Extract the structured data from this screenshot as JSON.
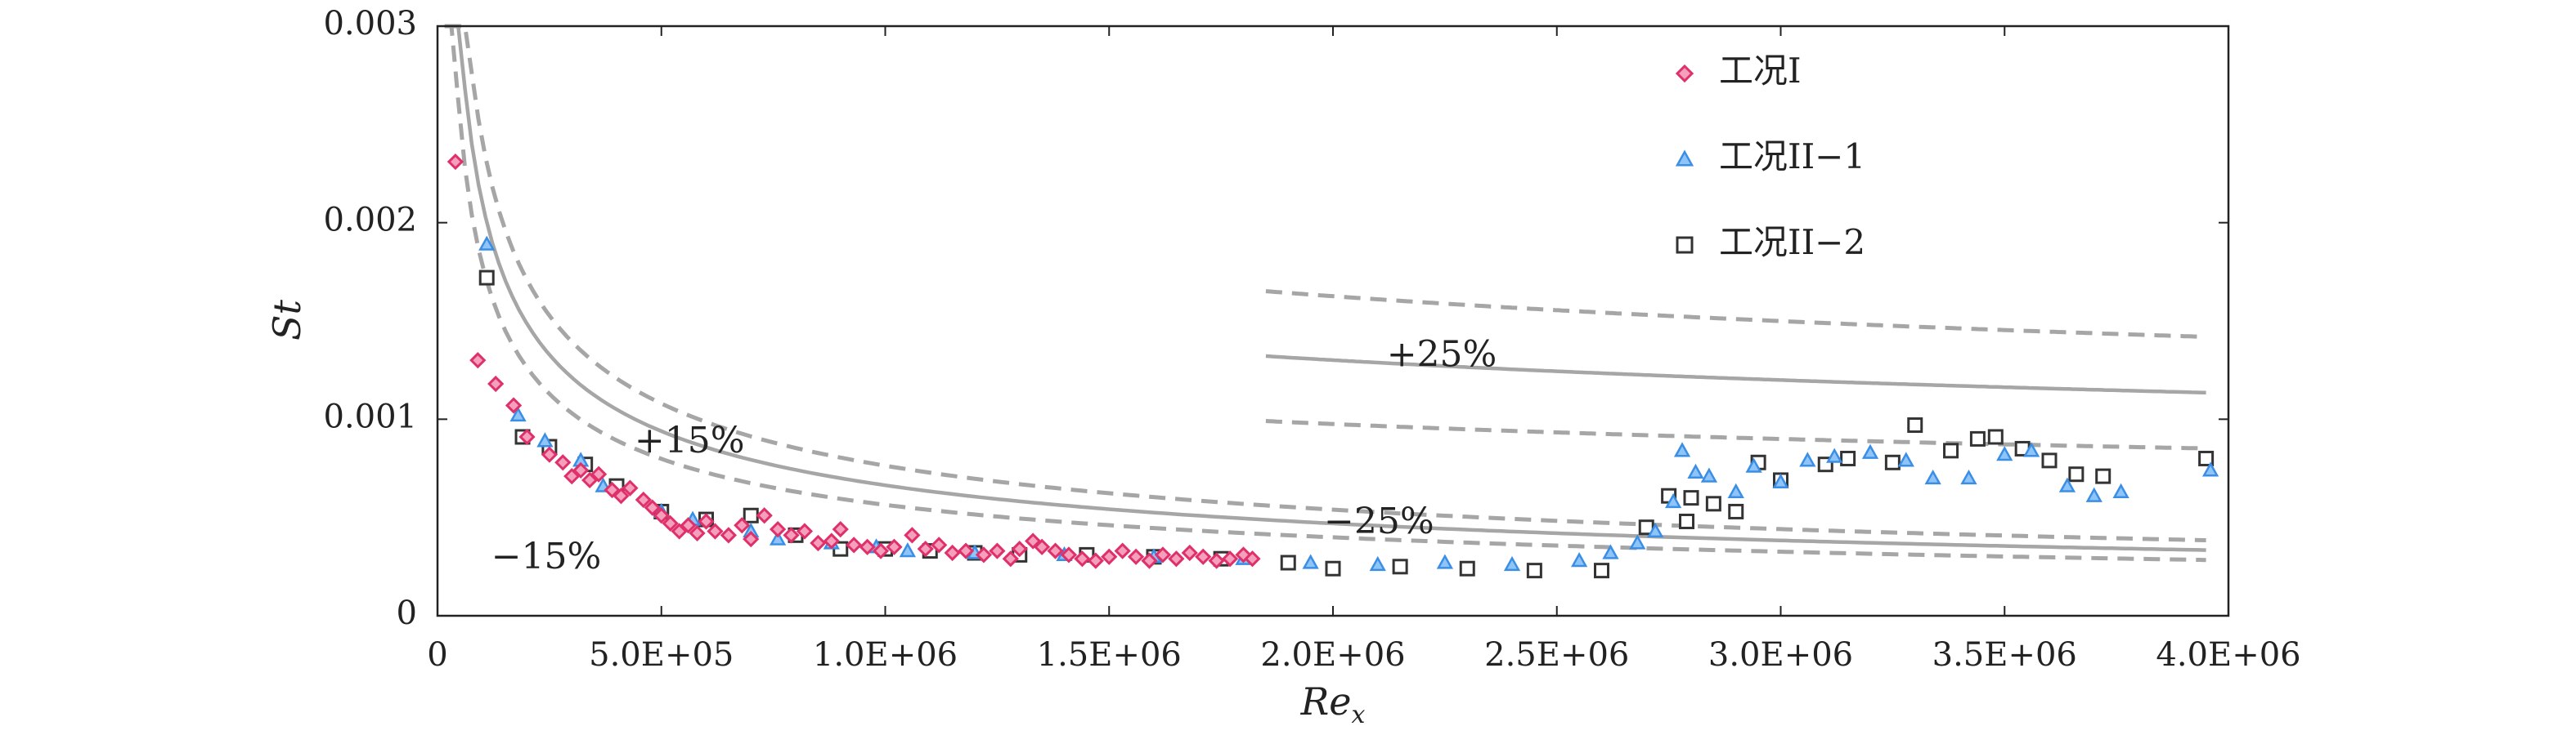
{
  "chart_data": {
    "type": "scatter",
    "xlabel": "Re",
    "xlabel_sub": "x",
    "ylabel": "St",
    "xlim": [
      0,
      4000000
    ],
    "ylim": [
      0,
      0.003
    ],
    "x_ticks": [
      {
        "value": 0,
        "label": "0"
      },
      {
        "value": 500000,
        "label": "5.0E+05"
      },
      {
        "value": 1000000,
        "label": "1.0E+06"
      },
      {
        "value": 1500000,
        "label": "1.5E+06"
      },
      {
        "value": 2000000,
        "label": "2.0E+06"
      },
      {
        "value": 2500000,
        "label": "2.5E+06"
      },
      {
        "value": 3000000,
        "label": "3.0E+06"
      },
      {
        "value": 3500000,
        "label": "3.5E+06"
      },
      {
        "value": 4000000,
        "label": "4.0E+06"
      }
    ],
    "y_ticks": [
      {
        "value": 0,
        "label": "0"
      },
      {
        "value": 0.001,
        "label": "0.001"
      },
      {
        "value": 0.002,
        "label": "0.002"
      },
      {
        "value": 0.003,
        "label": "0.003"
      }
    ],
    "grid": false,
    "legend_position": "top-right",
    "series": [
      {
        "name": "工况I",
        "marker": "diamond",
        "color": "#e0306a",
        "points": [
          [
            40000,
            0.00231
          ],
          [
            90000,
            0.0013
          ],
          [
            130000,
            0.00118
          ],
          [
            170000,
            0.00107
          ],
          [
            200000,
            0.00091
          ],
          [
            250000,
            0.00082
          ],
          [
            280000,
            0.00078
          ],
          [
            300000,
            0.00071
          ],
          [
            320000,
            0.00074
          ],
          [
            340000,
            0.00069
          ],
          [
            360000,
            0.00072
          ],
          [
            390000,
            0.00064
          ],
          [
            410000,
            0.00061
          ],
          [
            430000,
            0.00065
          ],
          [
            460000,
            0.00059
          ],
          [
            480000,
            0.00055
          ],
          [
            500000,
            0.00051
          ],
          [
            520000,
            0.00047
          ],
          [
            540000,
            0.00043
          ],
          [
            560000,
            0.00046
          ],
          [
            580000,
            0.00042
          ],
          [
            600000,
            0.00048
          ],
          [
            620000,
            0.00043
          ],
          [
            650000,
            0.00041
          ],
          [
            680000,
            0.00046
          ],
          [
            700000,
            0.00039
          ],
          [
            730000,
            0.00051
          ],
          [
            760000,
            0.00044
          ],
          [
            790000,
            0.00041
          ],
          [
            820000,
            0.00043
          ],
          [
            850000,
            0.00037
          ],
          [
            880000,
            0.00038
          ],
          [
            900000,
            0.00044
          ],
          [
            930000,
            0.00036
          ],
          [
            960000,
            0.00035
          ],
          [
            990000,
            0.00033
          ],
          [
            1020000,
            0.00035
          ],
          [
            1060000,
            0.00041
          ],
          [
            1090000,
            0.00034
          ],
          [
            1120000,
            0.00036
          ],
          [
            1150000,
            0.00032
          ],
          [
            1180000,
            0.00033
          ],
          [
            1220000,
            0.00031
          ],
          [
            1250000,
            0.00033
          ],
          [
            1280000,
            0.00029
          ],
          [
            1300000,
            0.00034
          ],
          [
            1330000,
            0.00038
          ],
          [
            1350000,
            0.00035
          ],
          [
            1380000,
            0.00033
          ],
          [
            1410000,
            0.00031
          ],
          [
            1440000,
            0.00029
          ],
          [
            1470000,
            0.00028
          ],
          [
            1500000,
            0.0003
          ],
          [
            1530000,
            0.00033
          ],
          [
            1560000,
            0.0003
          ],
          [
            1590000,
            0.00028
          ],
          [
            1620000,
            0.00031
          ],
          [
            1650000,
            0.00029
          ],
          [
            1680000,
            0.00032
          ],
          [
            1710000,
            0.0003
          ],
          [
            1740000,
            0.00028
          ],
          [
            1770000,
            0.00029
          ],
          [
            1800000,
            0.00031
          ],
          [
            1820000,
            0.00029
          ]
        ]
      },
      {
        "name": "工况II−1",
        "marker": "triangle",
        "color": "#3a8ee6",
        "points": [
          [
            110000,
            0.00189
          ],
          [
            180000,
            0.00102
          ],
          [
            240000,
            0.00089
          ],
          [
            320000,
            0.00079
          ],
          [
            370000,
            0.00066
          ],
          [
            500000,
            0.00053
          ],
          [
            570000,
            0.00049
          ],
          [
            700000,
            0.00043
          ],
          [
            760000,
            0.00039
          ],
          [
            880000,
            0.00037
          ],
          [
            980000,
            0.00035
          ],
          [
            1050000,
            0.00033
          ],
          [
            1200000,
            0.00032
          ],
          [
            1400000,
            0.00031
          ],
          [
            1600000,
            0.0003
          ],
          [
            1800000,
            0.00029
          ],
          [
            1950000,
            0.00027
          ],
          [
            2100000,
            0.00026
          ],
          [
            2250000,
            0.00027
          ],
          [
            2400000,
            0.00026
          ],
          [
            2550000,
            0.00028
          ],
          [
            2620000,
            0.00032
          ],
          [
            2680000,
            0.00037
          ],
          [
            2720000,
            0.00043
          ],
          [
            2760000,
            0.00058
          ],
          [
            2780000,
            0.00084
          ],
          [
            2810000,
            0.00073
          ],
          [
            2840000,
            0.00071
          ],
          [
            2900000,
            0.00063
          ],
          [
            2940000,
            0.00076
          ],
          [
            3000000,
            0.00068
          ],
          [
            3060000,
            0.00079
          ],
          [
            3120000,
            0.00081
          ],
          [
            3200000,
            0.00083
          ],
          [
            3280000,
            0.00079
          ],
          [
            3340000,
            0.0007
          ],
          [
            3420000,
            0.0007
          ],
          [
            3500000,
            0.00082
          ],
          [
            3560000,
            0.00084
          ],
          [
            3640000,
            0.00066
          ],
          [
            3700000,
            0.00061
          ],
          [
            3760000,
            0.00063
          ],
          [
            3960000,
            0.00074
          ]
        ]
      },
      {
        "name": "工况II−2",
        "marker": "square",
        "color": "#333333",
        "points": [
          [
            110000,
            0.00172
          ],
          [
            190000,
            0.00091
          ],
          [
            250000,
            0.00086
          ],
          [
            330000,
            0.00077
          ],
          [
            400000,
            0.00066
          ],
          [
            500000,
            0.00053
          ],
          [
            600000,
            0.00049
          ],
          [
            700000,
            0.00051
          ],
          [
            800000,
            0.00041
          ],
          [
            900000,
            0.00034
          ],
          [
            1000000,
            0.00034
          ],
          [
            1100000,
            0.00033
          ],
          [
            1200000,
            0.00032
          ],
          [
            1300000,
            0.00031
          ],
          [
            1450000,
            0.00031
          ],
          [
            1600000,
            0.0003
          ],
          [
            1750000,
            0.00029
          ],
          [
            1900000,
            0.00027
          ],
          [
            2000000,
            0.00024
          ],
          [
            2150000,
            0.00025
          ],
          [
            2300000,
            0.00024
          ],
          [
            2450000,
            0.00023
          ],
          [
            2600000,
            0.00023
          ],
          [
            2700000,
            0.00045
          ],
          [
            2750000,
            0.00061
          ],
          [
            2790000,
            0.00048
          ],
          [
            2800000,
            0.0006
          ],
          [
            2850000,
            0.00057
          ],
          [
            2900000,
            0.00053
          ],
          [
            2950000,
            0.00078
          ],
          [
            3000000,
            0.00069
          ],
          [
            3100000,
            0.00077
          ],
          [
            3150000,
            0.0008
          ],
          [
            3250000,
            0.00078
          ],
          [
            3300000,
            0.00097
          ],
          [
            3380000,
            0.00084
          ],
          [
            3440000,
            0.0009
          ],
          [
            3480000,
            0.00091
          ],
          [
            3540000,
            0.00085
          ],
          [
            3600000,
            0.00079
          ],
          [
            3660000,
            0.00072
          ],
          [
            3720000,
            0.00071
          ],
          [
            3950000,
            0.0008
          ]
        ]
      }
    ],
    "annotations": [
      {
        "text": "+15%",
        "x": 440000,
        "y": 0.00083
      },
      {
        "text": "−15%",
        "x": 120000,
        "y": 0.00024
      },
      {
        "text": "+25%",
        "x": 2120000,
        "y": 0.00127
      },
      {
        "text": "−25%",
        "x": 1980000,
        "y": 0.00042
      }
    ]
  }
}
